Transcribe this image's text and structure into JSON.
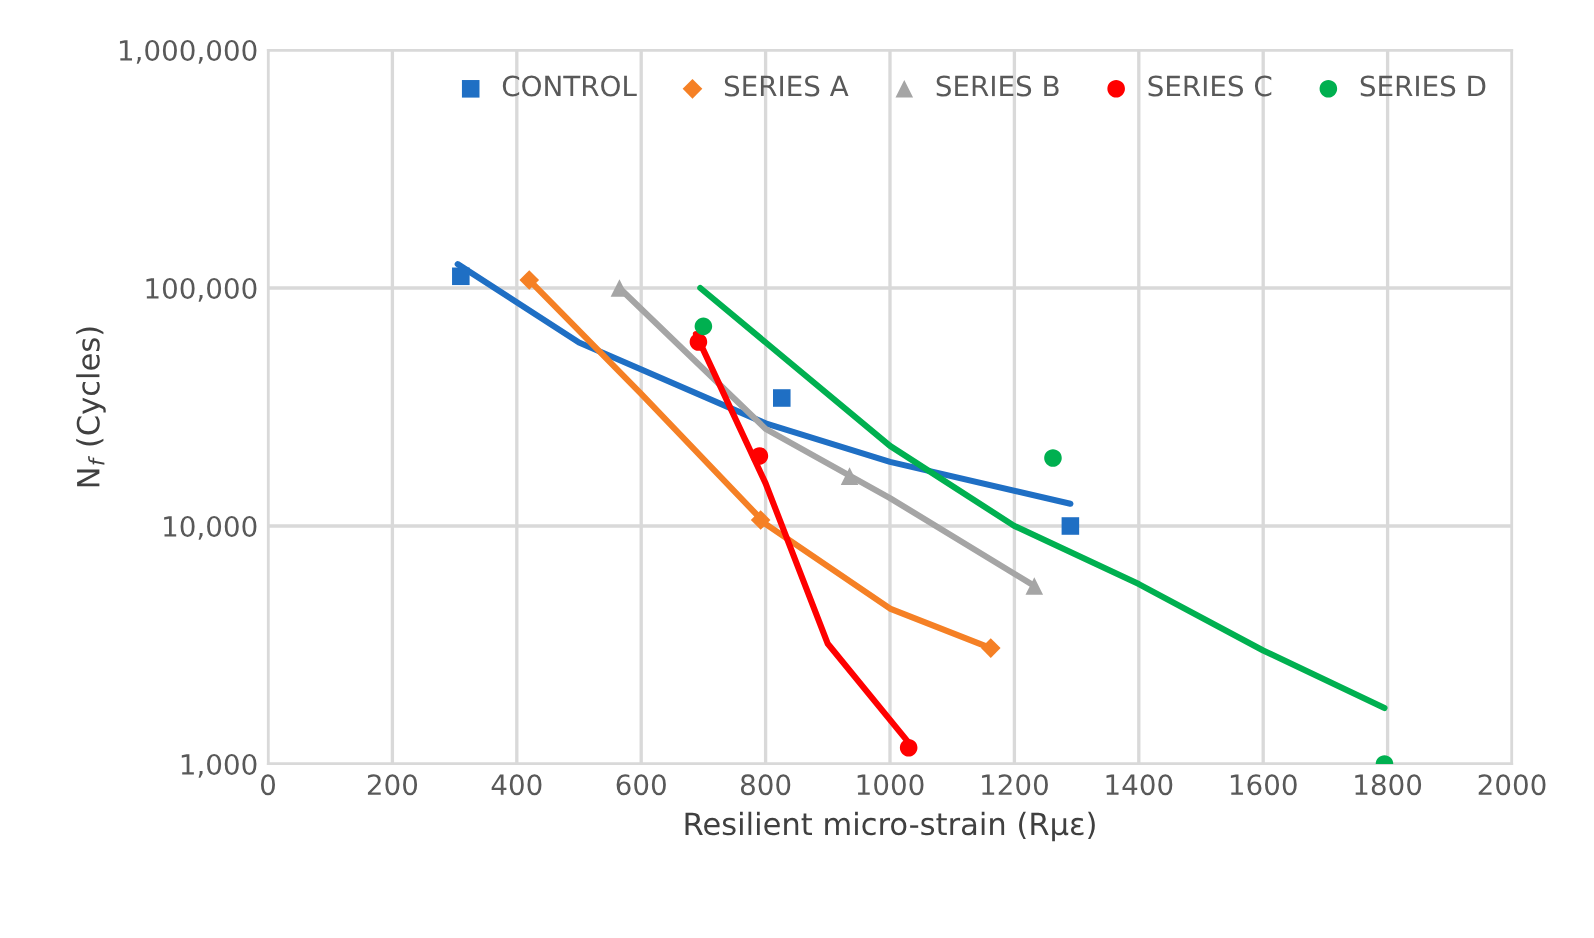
{
  "chart_data": {
    "type": "scatter",
    "xlabel": "Resilient micro-strain (Rμε)",
    "ylabel": "N$_{f}$ (Cycles)",
    "xlim": [
      0,
      2000
    ],
    "xticks": [
      0,
      200,
      400,
      600,
      800,
      1000,
      1200,
      1400,
      1600,
      1800,
      2000
    ],
    "ylim": [
      1000,
      1000000
    ],
    "yticks": [
      {
        "value": 1000,
        "label": "1,000"
      },
      {
        "value": 10000,
        "label": "10,000"
      },
      {
        "value": 100000,
        "label": "100,000"
      },
      {
        "value": 1000000,
        "label": "1,000,000"
      }
    ],
    "log": "y",
    "grid": true,
    "legend": "top right",
    "series": [
      {
        "name": "CONTROL",
        "color": "#1f6fc4",
        "marker": "square",
        "x": [
          310,
          826,
          1290
        ],
        "values": [
          112000,
          34500,
          10000
        ]
      },
      {
        "name": "SERIES A",
        "color": "#f58025",
        "marker": "diamond",
        "x": [
          420,
          792,
          1162
        ],
        "values": [
          108000,
          10600,
          3070
        ]
      },
      {
        "name": "SERIES B",
        "color": "#a5a5a5",
        "marker": "triangle",
        "x": [
          565,
          935,
          1232
        ],
        "values": [
          100000,
          16200,
          5600
        ]
      },
      {
        "name": "SERIES C",
        "color": "#ff0000",
        "marker": "circle",
        "x": [
          692,
          790,
          1030
        ],
        "values": [
          59300,
          19700,
          1170
        ]
      },
      {
        "name": "SERIES D",
        "color": "#00b050",
        "marker": "circle",
        "x": [
          700,
          1262,
          1795
        ],
        "values": [
          69000,
          19300,
          1000
        ]
      },
      {
        "type": "line",
        "color": "#1f6fc4",
        "marker": "none",
        "x": [
          305,
          500,
          800,
          1000,
          1290
        ],
        "values": [
          126000,
          59000,
          27000,
          18600,
          12400
        ]
      },
      {
        "type": "line",
        "color": "#f58025",
        "marker": "none",
        "x": [
          420,
          600,
          800,
          1000,
          1162
        ],
        "values": [
          108000,
          35900,
          10200,
          4500,
          3070
        ]
      },
      {
        "type": "line",
        "color": "#a5a5a5",
        "marker": "none",
        "x": [
          565,
          800,
          1000,
          1232
        ],
        "values": [
          100000,
          25600,
          13100,
          5600
        ]
      },
      {
        "type": "line",
        "color": "#ff0000",
        "marker": "none",
        "x": [
          688,
          800,
          900,
          1030
        ],
        "values": [
          64000,
          15100,
          3200,
          1230
        ]
      },
      {
        "type": "line",
        "color": "#00b050",
        "marker": "none",
        "x": [
          695,
          1000,
          1200,
          1400,
          1600,
          1795
        ],
        "values": [
          100000,
          21700,
          10000,
          5700,
          3000,
          1720
        ]
      }
    ]
  }
}
